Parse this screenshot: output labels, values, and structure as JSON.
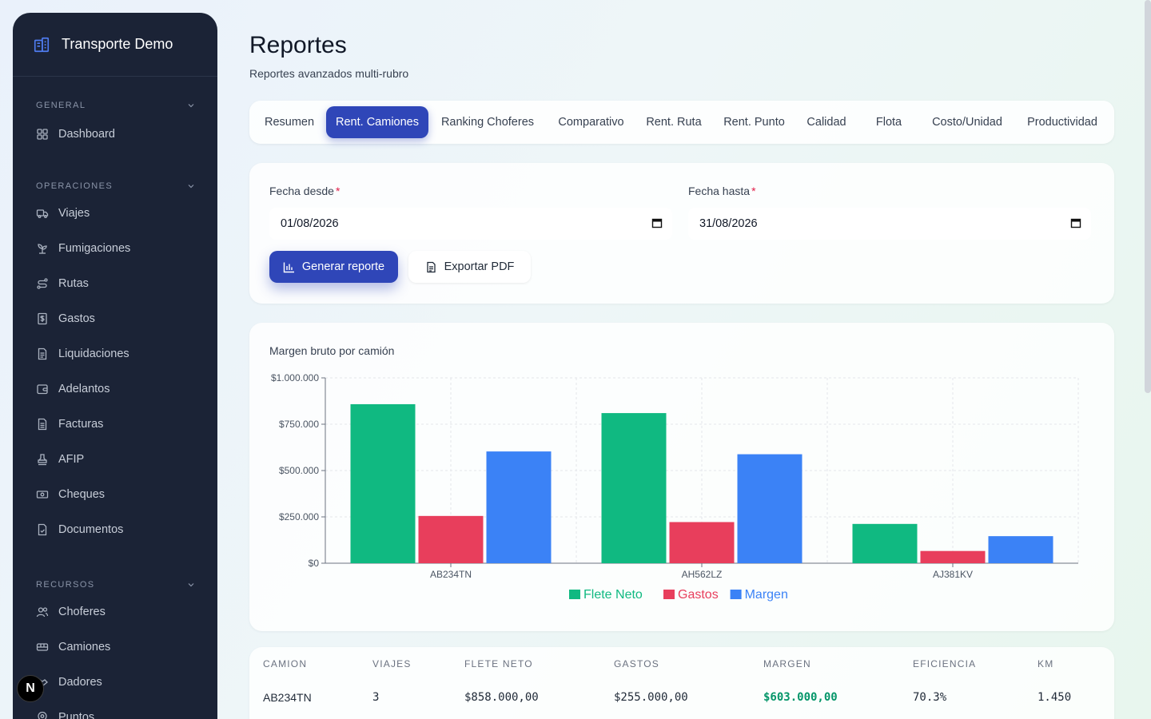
{
  "app": {
    "name": "Transporte Demo"
  },
  "sidebar": {
    "sections": [
      {
        "title": "GENERAL",
        "items": [
          {
            "label": "Dashboard",
            "icon": "grid-icon"
          }
        ]
      },
      {
        "title": "OPERACIONES",
        "items": [
          {
            "label": "Viajes",
            "icon": "truck-icon"
          },
          {
            "label": "Fumigaciones",
            "icon": "sprout-icon"
          },
          {
            "label": "Rutas",
            "icon": "route-icon"
          },
          {
            "label": "Gastos",
            "icon": "receipt-icon"
          },
          {
            "label": "Liquidaciones",
            "icon": "document-icon"
          },
          {
            "label": "Adelantos",
            "icon": "wallet-icon"
          },
          {
            "label": "Facturas",
            "icon": "invoice-icon"
          },
          {
            "label": "AFIP",
            "icon": "stamp-icon"
          },
          {
            "label": "Cheques",
            "icon": "banknote-icon"
          },
          {
            "label": "Documentos",
            "icon": "file-icon"
          }
        ]
      },
      {
        "title": "RECURSOS",
        "items": [
          {
            "label": "Choferes",
            "icon": "users-icon"
          },
          {
            "label": "Camiones",
            "icon": "bus-icon"
          },
          {
            "label": "Dadores",
            "icon": "handshake-icon"
          },
          {
            "label": "Puntos",
            "icon": "map-pin-icon"
          }
        ]
      }
    ]
  },
  "page": {
    "title": "Reportes",
    "subtitle": "Reportes avanzados multi-rubro"
  },
  "tabs": [
    {
      "label": "Resumen",
      "active": false
    },
    {
      "label": "Rent. Camiones",
      "active": true
    },
    {
      "label": "Ranking Choferes",
      "active": false
    },
    {
      "label": "Comparativo",
      "active": false
    },
    {
      "label": "Rent. Ruta",
      "active": false
    },
    {
      "label": "Rent. Punto",
      "active": false
    },
    {
      "label": "Calidad",
      "active": false
    },
    {
      "label": "Flota",
      "active": false
    },
    {
      "label": "Costo/Unidad",
      "active": false
    },
    {
      "label": "Productividad",
      "active": false
    }
  ],
  "filters": {
    "desde_label": "Fecha desde",
    "desde_value": "01/08/2026",
    "hasta_label": "Fecha hasta",
    "hasta_value": "31/08/2026",
    "required_mark": "*",
    "generate_label": "Generar reporte",
    "export_label": "Exportar PDF"
  },
  "chart_title": "Margen bruto por camión",
  "chart_data": {
    "type": "bar",
    "categories": [
      "AB234TN",
      "AH562LZ",
      "AJ381KV"
    ],
    "series": [
      {
        "name": "Flete Neto",
        "color": "#10b981",
        "values": [
          858000,
          810000,
          212000
        ]
      },
      {
        "name": "Gastos",
        "color": "#e83e5c",
        "values": [
          255000,
          222000,
          66000
        ]
      },
      {
        "name": "Margen",
        "color": "#3b82f6",
        "values": [
          603000,
          588000,
          146000
        ]
      }
    ],
    "yticks": [
      "$0",
      "$250.000",
      "$500.000",
      "$750.000",
      "$1.000.000"
    ],
    "ylim": [
      0,
      1000000
    ],
    "grid": true,
    "legend_position": "bottom"
  },
  "table": {
    "headers": [
      "CAMION",
      "VIAJES",
      "FLETE NETO",
      "GASTOS",
      "MARGEN",
      "EFICIENCIA",
      "KM"
    ],
    "rows": [
      [
        "AB234TN",
        "3",
        "$858.000,00",
        "$255.000,00",
        "$603.000,00",
        "70.3%",
        "1.450"
      ]
    ]
  },
  "badge": "N",
  "colors": {
    "primary": "#2f46b8",
    "sidebar_bg": "#1b2336",
    "positive": "#059669"
  }
}
